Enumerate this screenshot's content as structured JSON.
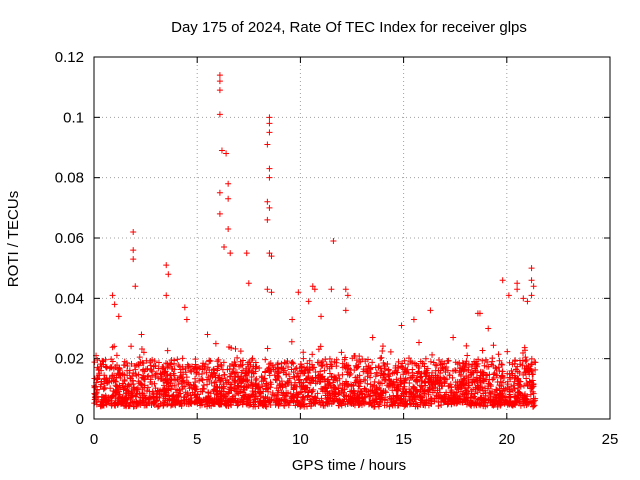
{
  "chart_data": {
    "type": "scatter",
    "title": "Day 175 of 2024, Rate Of TEC Index for receiver glps",
    "xlabel": "GPS time / hours",
    "ylabel": "ROTI / TECUs",
    "xlim": [
      0,
      25
    ],
    "ylim": [
      0,
      0.12
    ],
    "xticks": [
      0,
      5,
      10,
      15,
      20,
      25
    ],
    "yticks": [
      0,
      0.02,
      0.04,
      0.06,
      0.08,
      0.1,
      0.12
    ],
    "xtick_labels": [
      "0",
      "5",
      "10",
      "15",
      "20",
      "25"
    ],
    "ytick_labels": [
      "0",
      "0.02",
      "0.04",
      "0.06",
      "0.08",
      "0.1",
      "0.12"
    ],
    "grid": true,
    "marker": "+",
    "series_color": "#ff0000",
    "data_range_hours": [
      0,
      21.4
    ],
    "baseline_band": [
      0.004,
      0.02
    ],
    "spikes": [
      {
        "x": 0.1,
        "y": 0.021
      },
      {
        "x": 0.9,
        "y": 0.041
      },
      {
        "x": 1.0,
        "y": 0.038
      },
      {
        "x": 1.2,
        "y": 0.034
      },
      {
        "x": 1.9,
        "y": 0.062
      },
      {
        "x": 1.9,
        "y": 0.056
      },
      {
        "x": 1.9,
        "y": 0.053
      },
      {
        "x": 2.0,
        "y": 0.044
      },
      {
        "x": 2.3,
        "y": 0.028
      },
      {
        "x": 3.5,
        "y": 0.051
      },
      {
        "x": 3.6,
        "y": 0.048
      },
      {
        "x": 3.5,
        "y": 0.041
      },
      {
        "x": 4.4,
        "y": 0.037
      },
      {
        "x": 4.5,
        "y": 0.033
      },
      {
        "x": 5.5,
        "y": 0.028
      },
      {
        "x": 6.1,
        "y": 0.114
      },
      {
        "x": 6.1,
        "y": 0.112
      },
      {
        "x": 6.1,
        "y": 0.109
      },
      {
        "x": 6.1,
        "y": 0.101
      },
      {
        "x": 6.2,
        "y": 0.089
      },
      {
        "x": 6.1,
        "y": 0.075
      },
      {
        "x": 6.1,
        "y": 0.068
      },
      {
        "x": 6.4,
        "y": 0.088
      },
      {
        "x": 6.5,
        "y": 0.078
      },
      {
        "x": 6.5,
        "y": 0.073
      },
      {
        "x": 6.5,
        "y": 0.063
      },
      {
        "x": 6.3,
        "y": 0.057
      },
      {
        "x": 6.6,
        "y": 0.055
      },
      {
        "x": 7.4,
        "y": 0.055
      },
      {
        "x": 7.5,
        "y": 0.045
      },
      {
        "x": 8.5,
        "y": 0.1
      },
      {
        "x": 8.5,
        "y": 0.098
      },
      {
        "x": 8.5,
        "y": 0.095
      },
      {
        "x": 8.4,
        "y": 0.091
      },
      {
        "x": 8.5,
        "y": 0.083
      },
      {
        "x": 8.5,
        "y": 0.08
      },
      {
        "x": 8.4,
        "y": 0.072
      },
      {
        "x": 8.5,
        "y": 0.07
      },
      {
        "x": 8.4,
        "y": 0.066
      },
      {
        "x": 8.5,
        "y": 0.055
      },
      {
        "x": 8.6,
        "y": 0.054
      },
      {
        "x": 8.4,
        "y": 0.043
      },
      {
        "x": 8.6,
        "y": 0.042
      },
      {
        "x": 9.6,
        "y": 0.033
      },
      {
        "x": 9.9,
        "y": 0.042
      },
      {
        "x": 10.4,
        "y": 0.039
      },
      {
        "x": 10.6,
        "y": 0.044
      },
      {
        "x": 10.7,
        "y": 0.043
      },
      {
        "x": 11.0,
        "y": 0.034
      },
      {
        "x": 11.5,
        "y": 0.043
      },
      {
        "x": 11.6,
        "y": 0.059
      },
      {
        "x": 12.2,
        "y": 0.043
      },
      {
        "x": 12.3,
        "y": 0.041
      },
      {
        "x": 12.2,
        "y": 0.036
      },
      {
        "x": 13.5,
        "y": 0.027
      },
      {
        "x": 14.9,
        "y": 0.031
      },
      {
        "x": 15.5,
        "y": 0.033
      },
      {
        "x": 16.3,
        "y": 0.036
      },
      {
        "x": 17.4,
        "y": 0.027
      },
      {
        "x": 18.6,
        "y": 0.035
      },
      {
        "x": 18.7,
        "y": 0.035
      },
      {
        "x": 19.1,
        "y": 0.03
      },
      {
        "x": 19.8,
        "y": 0.046
      },
      {
        "x": 20.1,
        "y": 0.041
      },
      {
        "x": 20.5,
        "y": 0.045
      },
      {
        "x": 20.5,
        "y": 0.043
      },
      {
        "x": 20.8,
        "y": 0.04
      },
      {
        "x": 21.0,
        "y": 0.039
      },
      {
        "x": 21.2,
        "y": 0.05
      },
      {
        "x": 21.2,
        "y": 0.046
      },
      {
        "x": 21.3,
        "y": 0.044
      },
      {
        "x": 21.2,
        "y": 0.041
      }
    ]
  }
}
